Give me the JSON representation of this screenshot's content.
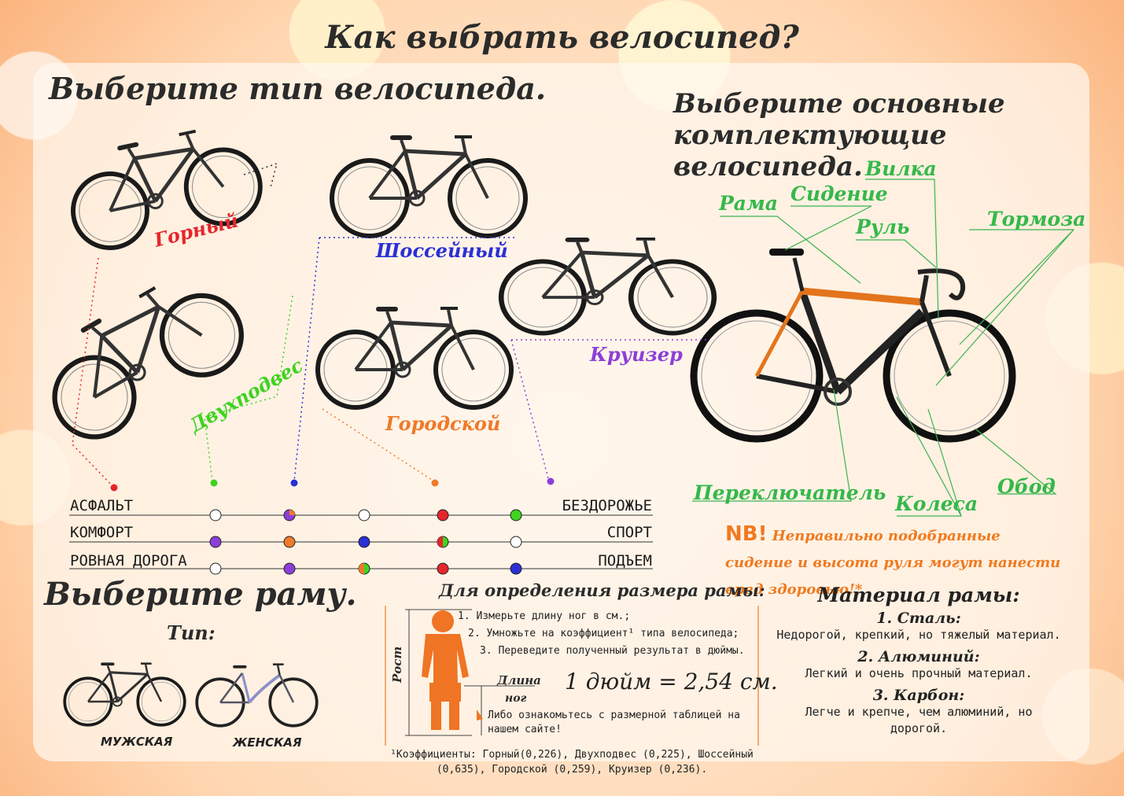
{
  "title": "Как выбрать велосипед?",
  "section_type": {
    "heading": "Выберите тип велосипеда.",
    "bikes": [
      {
        "label": "Горный",
        "color": "#e5262c"
      },
      {
        "label": "Двухподвес",
        "color": "#3fd320"
      },
      {
        "label": "Шоссейный",
        "color": "#2a2fd6"
      },
      {
        "label": "Городской",
        "color": "#ef7a2a"
      },
      {
        "label": "Круизер",
        "color": "#8c3fd8"
      }
    ]
  },
  "section_parts": {
    "heading_line1": "Выберите основные",
    "heading_line2": "комплектующие велосипеда.",
    "parts": [
      "Вилка",
      "Рама",
      "Сидение",
      "Руль",
      "Тормоза",
      "Переключатель",
      "Колеса",
      "Обод"
    ],
    "nb_label": "NB!",
    "nb_text": "Неправильно подобранные сидение и высота руля могут нанести вред здоровью!*"
  },
  "comparison": {
    "rows": [
      {
        "left": "АСФАЛЬТ",
        "right": "БЕЗДОРОЖЬЕ"
      },
      {
        "left": "КОМФОРТ",
        "right": "СПОРТ"
      },
      {
        "left": "РОВНАЯ ДОРОГА",
        "right": "ПОДЪЕМ"
      }
    ]
  },
  "section_frame": {
    "heading": "Выберите раму.",
    "type_label": "Тип:",
    "male_label": "МУЖСКАЯ",
    "female_label": "ЖЕНСКАЯ"
  },
  "frame_size": {
    "heading": "Для определения размера рамы:",
    "steps": [
      "1. Измерьте длину ног в см.;",
      "2. Умножьте на коэффициент¹ типа велосипеда;",
      "3. Переведите полученный результат в дюймы."
    ],
    "height_label": "Рост",
    "leg_label_1": "Длина",
    "leg_label_2": "ног",
    "inch_note": "1 дюйм = 2,54 см.",
    "alt_note": "Либо ознакомьтесь с размерной таблицей на нашем сайте!",
    "footnote": "¹Коэффициенты: Горный(0,226), Двухподвес (0,225), Шоссейный (0,635), Городской (0,259), Круизер (0,236)."
  },
  "material": {
    "heading": "Материал рамы:",
    "items": [
      {
        "name": "1. Сталь:",
        "desc": "Недорогой, крепкий, но тяжелый материал."
      },
      {
        "name": "2. Алюминий:",
        "desc": "Легкий и очень прочный материал."
      },
      {
        "name": "3. Карбон:",
        "desc": "Легче и крепче, чем алюминий, но дорогой."
      }
    ]
  }
}
